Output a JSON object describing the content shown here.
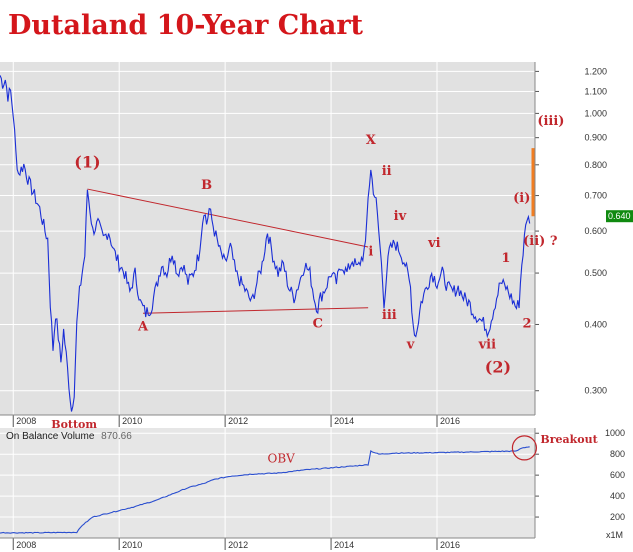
{
  "title": "Dutaland 10-Year Chart",
  "chart_data": [
    {
      "type": "line",
      "series": [
        {
          "values": [
            [
              "2007.75",
              1.18
            ],
            [
              "2007.8",
              1.14
            ],
            [
              "2007.85",
              1.16
            ],
            [
              "2007.9",
              1.08
            ],
            [
              "2007.95",
              1.1
            ],
            [
              "2008.0",
              1.0
            ],
            [
              "2008.05",
              0.84
            ],
            [
              "2008.1",
              0.77
            ],
            [
              "2008.2",
              0.8
            ],
            [
              "2008.3",
              0.74
            ],
            [
              "2008.4",
              0.7
            ],
            [
              "2008.5",
              0.66
            ],
            [
              "2008.6",
              0.6
            ],
            [
              "2008.65",
              0.58
            ],
            [
              "2008.7",
              0.44
            ],
            [
              "2008.75",
              0.36
            ],
            [
              "2008.8",
              0.42
            ],
            [
              "2008.85",
              0.38
            ],
            [
              "2008.9",
              0.34
            ],
            [
              "2008.95",
              0.39
            ],
            [
              "2009.0",
              0.35
            ],
            [
              "2009.05",
              0.31
            ],
            [
              "2009.1",
              0.275
            ],
            [
              "2009.15",
              0.3
            ],
            [
              "2009.2",
              0.4
            ],
            [
              "2009.25",
              0.46
            ],
            [
              "2009.3",
              0.5
            ],
            [
              "2009.35",
              0.54
            ],
            [
              "2009.4",
              0.72
            ],
            [
              "2009.45",
              0.66
            ],
            [
              "2009.5",
              0.6
            ],
            [
              "2009.6",
              0.62
            ],
            [
              "2009.7",
              0.58
            ],
            [
              "2009.8",
              0.6
            ],
            [
              "2009.9",
              0.55
            ],
            [
              "2010.0",
              0.52
            ],
            [
              "2010.1",
              0.5
            ],
            [
              "2010.2",
              0.46
            ],
            [
              "2010.3",
              0.5
            ],
            [
              "2010.4",
              0.44
            ],
            [
              "2010.5",
              0.42
            ],
            [
              "2010.6",
              0.43
            ],
            [
              "2010.7",
              0.47
            ],
            [
              "2010.8",
              0.52
            ],
            [
              "2010.9",
              0.5
            ],
            [
              "2011.0",
              0.55
            ],
            [
              "2011.1",
              0.5
            ],
            [
              "2011.2",
              0.52
            ],
            [
              "2011.3",
              0.48
            ],
            [
              "2011.4",
              0.5
            ],
            [
              "2011.5",
              0.54
            ],
            [
              "2011.6",
              0.66
            ],
            [
              "2011.65",
              0.62
            ],
            [
              "2011.7",
              0.66
            ],
            [
              "2011.8",
              0.6
            ],
            [
              "2011.9",
              0.55
            ],
            [
              "2012.0",
              0.52
            ],
            [
              "2012.1",
              0.56
            ],
            [
              "2012.2",
              0.5
            ],
            [
              "2012.3",
              0.48
            ],
            [
              "2012.4",
              0.46
            ],
            [
              "2012.5",
              0.44
            ],
            [
              "2012.6",
              0.48
            ],
            [
              "2012.7",
              0.52
            ],
            [
              "2012.8",
              0.6
            ],
            [
              "2012.9",
              0.54
            ],
            [
              "2013.0",
              0.5
            ],
            [
              "2013.1",
              0.52
            ],
            [
              "2013.2",
              0.47
            ],
            [
              "2013.3",
              0.45
            ],
            [
              "2013.4",
              0.48
            ],
            [
              "2013.5",
              0.52
            ],
            [
              "2013.6",
              0.5
            ],
            [
              "2013.7",
              0.44
            ],
            [
              "2013.75",
              0.43
            ],
            [
              "2013.8",
              0.45
            ],
            [
              "2013.9",
              0.47
            ],
            [
              "2014.0",
              0.5
            ],
            [
              "2014.1",
              0.48
            ],
            [
              "2014.2",
              0.52
            ],
            [
              "2014.3",
              0.5
            ],
            [
              "2014.4",
              0.53
            ],
            [
              "2014.5",
              0.51
            ],
            [
              "2014.6",
              0.54
            ],
            [
              "2014.65",
              0.56
            ],
            [
              "2014.7",
              0.7
            ],
            [
              "2014.75",
              0.78
            ],
            [
              "2014.8",
              0.72
            ],
            [
              "2014.85",
              0.68
            ],
            [
              "2014.9",
              0.6
            ],
            [
              "2014.95",
              0.52
            ],
            [
              "2015.0",
              0.44
            ],
            [
              "2015.05",
              0.5
            ],
            [
              "2015.1",
              0.55
            ],
            [
              "2015.2",
              0.57
            ],
            [
              "2015.3",
              0.55
            ],
            [
              "2015.4",
              0.52
            ],
            [
              "2015.5",
              0.47
            ],
            [
              "2015.55",
              0.4
            ],
            [
              "2015.6",
              0.38
            ],
            [
              "2015.7",
              0.44
            ],
            [
              "2015.8",
              0.47
            ],
            [
              "2015.9",
              0.5
            ],
            [
              "2016.0",
              0.48
            ],
            [
              "2016.1",
              0.5
            ],
            [
              "2016.2",
              0.47
            ],
            [
              "2016.3",
              0.46
            ],
            [
              "2016.4",
              0.47
            ],
            [
              "2016.5",
              0.45
            ],
            [
              "2016.6",
              0.44
            ],
            [
              "2016.7",
              0.42
            ],
            [
              "2016.8",
              0.41
            ],
            [
              "2016.9",
              0.4
            ],
            [
              "2016.95",
              0.39
            ],
            [
              "2017.0",
              0.4
            ],
            [
              "2017.1",
              0.44
            ],
            [
              "2017.2",
              0.48
            ],
            [
              "2017.3",
              0.47
            ],
            [
              "2017.4",
              0.45
            ],
            [
              "2017.5",
              0.43
            ],
            [
              "2017.55",
              0.44
            ],
            [
              "2017.6",
              0.52
            ],
            [
              "2017.65",
              0.58
            ],
            [
              "2017.7",
              0.64
            ],
            [
              "2017.75",
              0.62
            ]
          ]
        }
      ],
      "y_scale": "log",
      "ylim": [
        0.27,
        1.25
      ],
      "xlim": [
        2007.75,
        2017.85
      ],
      "x_ticks": [
        "2008",
        "2010",
        "2012",
        "2014",
        "2016"
      ],
      "y_ticks": [
        "1.200",
        "1.100",
        "1.000",
        "0.900",
        "0.800",
        "0.700",
        "0.600",
        "0.500",
        "0.400",
        "0.300"
      ],
      "last_price_label": "0.640",
      "grid": true,
      "line_color": "#1a2ed6",
      "annotation_color": "#c1272d",
      "wave_labels": [
        {
          "text": "(1)",
          "x": 2009.4,
          "y": 0.79
        },
        {
          "text": "B",
          "x": 2011.65,
          "y": 0.72
        },
        {
          "text": "X",
          "x": 2014.75,
          "y": 0.875
        },
        {
          "text": "ii",
          "x": 2015.05,
          "y": 0.765
        },
        {
          "text": "iv",
          "x": 2015.3,
          "y": 0.63
        },
        {
          "text": "i",
          "x": 2014.75,
          "y": 0.54
        },
        {
          "text": "vi",
          "x": 2015.95,
          "y": 0.56
        },
        {
          "text": "(i)",
          "x": 2017.6,
          "y": 0.68
        },
        {
          "text": "(ii) ?",
          "x": 2017.95,
          "y": 0.565
        },
        {
          "text": "(iii)",
          "x": 2018.15,
          "y": 0.95
        },
        {
          "text": "1",
          "x": 2017.3,
          "y": 0.525
        },
        {
          "text": "A",
          "x": 2010.45,
          "y": 0.39
        },
        {
          "text": "C",
          "x": 2013.75,
          "y": 0.395
        },
        {
          "text": "iii",
          "x": 2015.1,
          "y": 0.41
        },
        {
          "text": "v",
          "x": 2015.5,
          "y": 0.36
        },
        {
          "text": "vii",
          "x": 2016.95,
          "y": 0.36
        },
        {
          "text": "2",
          "x": 2017.7,
          "y": 0.395
        },
        {
          "text": "(2)",
          "x": 2017.15,
          "y": 0.325
        },
        {
          "text": "Bottom",
          "x": 2009.15,
          "y": 0.255
        }
      ],
      "trend_lines": [
        {
          "from": [
            2009.4,
            0.72
          ],
          "to": [
            2014.7,
            0.56
          ]
        },
        {
          "from": [
            2010.45,
            0.42
          ],
          "to": [
            2014.7,
            0.43
          ]
        }
      ],
      "target_bar": {
        "x": 2017.85,
        "y_from": 0.64,
        "y_to": 0.86
      }
    },
    {
      "type": "line",
      "title": "On Balance Volume",
      "value_label": "870.66",
      "series": [
        {
          "name": "OBV",
          "values": [
            [
              "2007.75",
              50
            ],
            [
              "2008.5",
              50
            ],
            [
              "2009.2",
              55
            ],
            [
              "2009.3",
              120
            ],
            [
              "2009.5",
              200
            ],
            [
              "2009.9",
              250
            ],
            [
              "2010.3",
              300
            ],
            [
              "2010.7",
              360
            ],
            [
              "2011.0",
              420
            ],
            [
              "2011.3",
              480
            ],
            [
              "2011.6",
              520
            ],
            [
              "2011.8",
              560
            ],
            [
              "2012.1",
              590
            ],
            [
              "2012.5",
              610
            ],
            [
              "2013.0",
              620
            ],
            [
              "2013.5",
              650
            ],
            [
              "2014.0",
              670
            ],
            [
              "2014.5",
              690
            ],
            [
              "2014.7",
              700
            ],
            [
              "2014.75",
              830
            ],
            [
              "2014.9",
              800
            ],
            [
              "2015.2",
              810
            ],
            [
              "2016.0",
              815
            ],
            [
              "2016.5",
              820
            ],
            [
              "2017.0",
              825
            ],
            [
              "2017.5",
              830
            ],
            [
              "2017.6",
              860
            ],
            [
              "2017.75",
              870.66
            ]
          ]
        }
      ],
      "ylim": [
        0,
        1050
      ],
      "xlim": [
        2007.75,
        2017.85
      ],
      "y_ticks": [
        "1000",
        "800",
        "600",
        "400",
        "200"
      ],
      "x_ticks": [
        "2008",
        "2010",
        "2012",
        "2014",
        "2016"
      ],
      "unit_label": "x1M",
      "annotation": "Breakout",
      "obv_label": "OBV",
      "line_color": "#2b4fcf"
    }
  ]
}
